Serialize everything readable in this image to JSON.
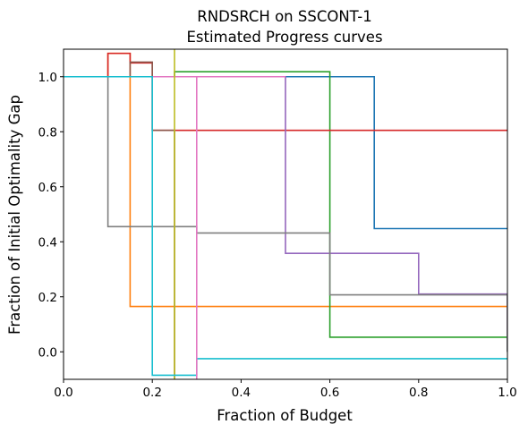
{
  "chart_data": {
    "type": "line",
    "title": "RNDSRCH on SSCONT-1",
    "subtitle": "Estimated Progress curves",
    "xlabel": "Fraction of Budget",
    "ylabel": "Fraction of Initial Optimality Gap",
    "xlim": [
      0,
      1
    ],
    "ylim": [
      -0.1,
      1.1
    ],
    "xticks": [
      0.0,
      0.2,
      0.4,
      0.6,
      0.8,
      1.0
    ],
    "xtick_labels": [
      "0.0",
      "0.2",
      "0.4",
      "0.6",
      "0.8",
      "1.0"
    ],
    "yticks": [
      0.0,
      0.2,
      0.4,
      0.6,
      0.8,
      1.0
    ],
    "ytick_labels": [
      "0.0",
      "0.2",
      "0.4",
      "0.6",
      "0.8",
      "1.0"
    ],
    "grid": false,
    "legend": false,
    "step": "post",
    "series": [
      {
        "color": "#1f77b4",
        "x": [
          0,
          0.7,
          0.7,
          1.0
        ],
        "y": [
          1.0,
          1.0,
          0.448,
          0.448
        ]
      },
      {
        "color": "#ff7f0e",
        "x": [
          0,
          0.1,
          0.1,
          0.15,
          0.15,
          1.0
        ],
        "y": [
          1.0,
          1.0,
          1.085,
          1.085,
          0.165,
          0.165
        ]
      },
      {
        "color": "#2ca02c",
        "x": [
          0,
          0.25,
          0.25,
          0.6,
          0.6,
          1.0,
          1.0
        ],
        "y": [
          1.0,
          1.0,
          1.018,
          1.018,
          0.053,
          0.053,
          0.0
        ]
      },
      {
        "color": "#d62728",
        "x": [
          0,
          0.1,
          0.1,
          0.15,
          0.15,
          0.2,
          0.2,
          1.0
        ],
        "y": [
          1.0,
          1.0,
          1.085,
          1.085,
          1.05,
          1.05,
          0.805,
          0.805
        ]
      },
      {
        "color": "#9467bd",
        "x": [
          0,
          0.5,
          0.5,
          0.8,
          0.8,
          1.0,
          1.0
        ],
        "y": [
          1.0,
          1.0,
          0.358,
          0.358,
          0.21,
          0.21,
          0.0
        ]
      },
      {
        "color": "#8c564b",
        "x": [
          0,
          0.15,
          0.15,
          0.2,
          0.2,
          0.25,
          0.25
        ],
        "y": [
          1.0,
          1.0,
          1.053,
          1.053,
          0.805,
          0.805,
          -0.1
        ]
      },
      {
        "color": "#e377c2",
        "x": [
          0,
          0.3,
          0.3,
          0.5,
          0.5
        ],
        "y": [
          1.0,
          1.0,
          1.0,
          1.0,
          1.0
        ]
      },
      {
        "color": "#7f7f7f",
        "x": [
          0,
          0.1,
          0.1,
          0.3,
          0.3,
          0.6,
          0.6,
          1.0,
          1.0
        ],
        "y": [
          1.0,
          1.0,
          0.455,
          0.455,
          0.432,
          0.432,
          0.207,
          0.207,
          0.0
        ]
      },
      {
        "color": "#bcbd22",
        "x": [
          0.25,
          0.25
        ],
        "y": [
          -0.1,
          1.1
        ]
      },
      {
        "color": "#17becf",
        "x": [
          0,
          0.2,
          0.2,
          0.3,
          0.3,
          1.0
        ],
        "y": [
          1.0,
          1.0,
          -0.085,
          -0.085,
          -0.025,
          -0.025
        ]
      },
      {
        "color": "#e377c2",
        "x": [
          0.3,
          0.3
        ],
        "y": [
          -0.1,
          1.0
        ]
      }
    ]
  }
}
